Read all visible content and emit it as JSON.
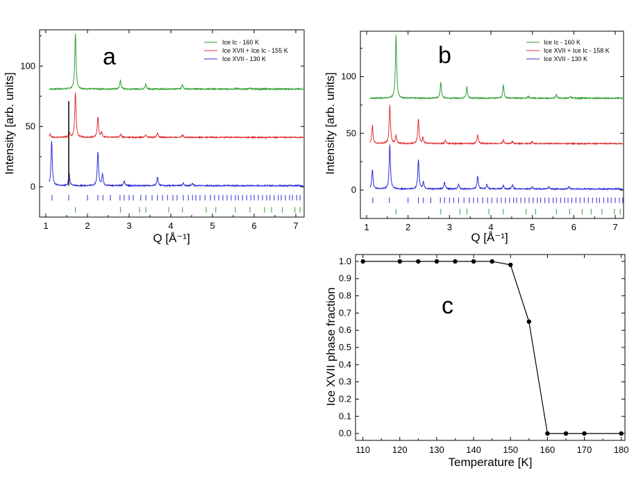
{
  "panels": {
    "a": {
      "letter": "a",
      "xlabel": "Q [Å⁻¹]",
      "ylabel": "Intensity [arb. units]",
      "xlim": [
        0.85,
        7.2
      ],
      "ylim": [
        -25,
        130
      ],
      "xticks": [
        1,
        2,
        3,
        4,
        5,
        6,
        7
      ],
      "yticks": [
        0,
        50,
        100
      ],
      "legend": [
        "Ice Ic - 160 K",
        "Ice XVII + Ice Ic - 155 K",
        "Ice XVII - 130 K"
      ],
      "series": [
        {
          "name": "Ice Ic - 160 K",
          "color": "#2e9e2e",
          "offset": 81,
          "peaks": [
            [
              1.71,
              46
            ],
            [
              2.79,
              7
            ],
            [
              3.4,
              4
            ],
            [
              4.28,
              4
            ],
            [
              5.58,
              0.6
            ],
            [
              5.9,
              0.8
            ]
          ]
        },
        {
          "name": "Ice XVII + Ice Ic - 155 K",
          "color": "#e03030",
          "offset": 41,
          "peaks": [
            [
              1.1,
              3
            ],
            [
              1.56,
              4
            ],
            [
              1.71,
              37
            ],
            [
              2.25,
              17
            ],
            [
              2.34,
              4
            ],
            [
              2.8,
              3
            ],
            [
              3.4,
              2
            ],
            [
              3.68,
              4
            ],
            [
              4.28,
              2
            ]
          ]
        },
        {
          "name": "Ice XVII - 130 K",
          "color": "#2b2bd8",
          "offset": 1,
          "peaks": [
            [
              1.14,
              37
            ],
            [
              1.56,
              10
            ],
            [
              2.25,
              28
            ],
            [
              2.36,
              9
            ],
            [
              2.88,
              4
            ],
            [
              3.68,
              7
            ],
            [
              4.3,
              2
            ],
            [
              4.52,
              2
            ]
          ]
        }
      ],
      "black_line": {
        "x": 1.55,
        "y0": 1,
        "y1": 71
      },
      "ticks_xvii": [
        1.15,
        1.55,
        2.0,
        2.25,
        2.37,
        2.55,
        2.78,
        2.88,
        3.0,
        3.1,
        3.28,
        3.4,
        3.55,
        3.68,
        3.8,
        3.92,
        4.05,
        4.15,
        4.3,
        4.42,
        4.52,
        4.6,
        4.7,
        4.82,
        4.95,
        5.05,
        5.15,
        5.25,
        5.35,
        5.45,
        5.55,
        5.62,
        5.72,
        5.82,
        5.92,
        6.0,
        6.1,
        6.2,
        6.3,
        6.38,
        6.48,
        6.58,
        6.65,
        6.75,
        6.85,
        6.92,
        7.02,
        7.1
      ],
      "ticks_ic": [
        1.71,
        2.79,
        3.25,
        3.4,
        3.95,
        4.28,
        4.85,
        5.08,
        5.55,
        5.9,
        6.25,
        6.42,
        6.68,
        6.98,
        7.1
      ]
    },
    "b": {
      "letter": "b",
      "xlabel": "Q [Å⁻¹]",
      "ylabel": "Intensity [arb. units]",
      "xlim": [
        0.85,
        7.2
      ],
      "ylim": [
        -25,
        140
      ],
      "xticks": [
        1,
        2,
        3,
        4,
        5,
        6,
        7
      ],
      "yticks": [
        0,
        50,
        100
      ],
      "legend": [
        "Ice Ic - 160 K",
        "Ice XVII + Ice Ic - 158 K",
        "Ice XVII - 130 K"
      ],
      "series": [
        {
          "name": "Ice Ic - 160 K",
          "color": "#2e9e2e",
          "offset": 81,
          "peaks": [
            [
              1.71,
              56
            ],
            [
              2.79,
              14
            ],
            [
              3.42,
              10
            ],
            [
              4.3,
              12
            ],
            [
              4.9,
              1.5
            ],
            [
              5.58,
              3
            ],
            [
              5.92,
              1.5
            ]
          ]
        },
        {
          "name": "Ice XVII + Ice Ic - 158 K",
          "color": "#e03030",
          "offset": 41,
          "peaks": [
            [
              1.14,
              16
            ],
            [
              1.56,
              34
            ],
            [
              1.71,
              7
            ],
            [
              2.25,
              22
            ],
            [
              2.36,
              5
            ],
            [
              2.9,
              3
            ],
            [
              3.68,
              8
            ],
            [
              4.3,
              3
            ],
            [
              4.52,
              2
            ],
            [
              5.0,
              1.5
            ]
          ]
        },
        {
          "name": "Ice XVII - 130 K",
          "color": "#2b2bd8",
          "offset": 1,
          "peaks": [
            [
              1.14,
              17
            ],
            [
              1.56,
              39
            ],
            [
              2.25,
              26
            ],
            [
              2.37,
              6
            ],
            [
              2.88,
              6
            ],
            [
              3.22,
              4
            ],
            [
              3.68,
              11
            ],
            [
              3.9,
              4
            ],
            [
              4.3,
              3
            ],
            [
              4.52,
              4
            ],
            [
              5.0,
              2
            ],
            [
              5.4,
              1.5
            ],
            [
              5.88,
              2
            ]
          ]
        }
      ],
      "ticks_xvii": [
        1.15,
        1.55,
        2.0,
        2.25,
        2.37,
        2.55,
        2.78,
        2.88,
        3.0,
        3.1,
        3.22,
        3.35,
        3.48,
        3.58,
        3.68,
        3.8,
        3.92,
        4.02,
        4.15,
        4.25,
        4.35,
        4.45,
        4.55,
        4.62,
        4.72,
        4.82,
        4.92,
        5.02,
        5.12,
        5.2,
        5.3,
        5.4,
        5.5,
        5.58,
        5.68,
        5.78,
        5.86,
        5.95,
        6.05,
        6.15,
        6.25,
        6.35,
        6.45,
        6.55,
        6.62,
        6.72,
        6.82,
        6.9,
        7.0,
        7.1,
        7.18
      ],
      "ticks_ic": [
        1.71,
        2.79,
        3.25,
        3.42,
        3.95,
        4.3,
        4.85,
        5.08,
        5.58,
        5.9,
        6.2,
        6.42,
        6.68,
        6.98,
        7.12
      ]
    },
    "c": {
      "letter": "c",
      "xlabel": "Temperature [K]",
      "ylabel": "Ice XVII phase fraction"
    }
  },
  "chart_data": [
    {
      "type": "line",
      "title": "a",
      "xlabel": "Q [Å⁻¹]",
      "ylabel": "Intensity [arb. units]",
      "xlim": [
        0.85,
        7.2
      ],
      "ylim": [
        -25,
        130
      ],
      "legend": [
        "Ice Ic - 160 K",
        "Ice XVII + Ice Ic - 155 K",
        "Ice XVII - 130 K"
      ]
    },
    {
      "type": "line",
      "title": "b",
      "xlabel": "Q [Å⁻¹]",
      "ylabel": "Intensity [arb. units]",
      "xlim": [
        0.85,
        7.2
      ],
      "ylim": [
        -25,
        140
      ],
      "legend": [
        "Ice Ic - 160 K",
        "Ice XVII + Ice Ic - 158 K",
        "Ice XVII - 130 K"
      ]
    },
    {
      "type": "line",
      "title": "c",
      "xlabel": "Temperature [K]",
      "ylabel": "Ice XVII phase fraction",
      "x": [
        110,
        120,
        125,
        130,
        135,
        140,
        145,
        150,
        155,
        160,
        165,
        170,
        180
      ],
      "y": [
        1.0,
        1.0,
        1.0,
        1.0,
        1.0,
        1.0,
        1.0,
        0.98,
        0.65,
        0.0,
        0.0,
        0.0,
        0.0
      ],
      "xlim": [
        108,
        181
      ],
      "ylim": [
        -0.04,
        1.04
      ],
      "xticks": [
        110,
        120,
        130,
        140,
        150,
        160,
        170,
        180
      ],
      "yticks": [
        0.0,
        0.1,
        0.2,
        0.3,
        0.4,
        0.5,
        0.6,
        0.7,
        0.8,
        0.9,
        1.0
      ],
      "ytick_labels": [
        "0.0",
        "0.1",
        "0.2",
        "0.3",
        "0.4",
        "0.5",
        "0.6",
        "0.7",
        "0.8",
        "0.9",
        "1.0"
      ]
    }
  ]
}
